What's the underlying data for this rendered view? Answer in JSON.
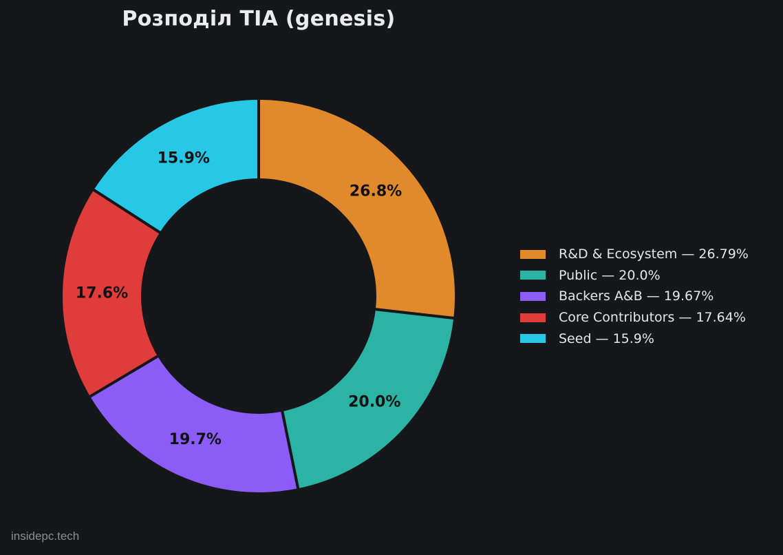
{
  "chart_data": {
    "type": "pie",
    "title": "Розподіл TIA (genesis)",
    "categories": [
      "R&D & Ecosystem",
      "Public",
      "Backers A&B",
      "Core Contributors",
      "Seed"
    ],
    "values": [
      26.79,
      20.0,
      19.67,
      17.64,
      15.9
    ],
    "slice_labels": [
      "26.8%",
      "20.0%",
      "19.7%",
      "17.6%",
      "15.9%"
    ],
    "legend_entries": [
      "R&D & Ecosystem — 26.79%",
      "Public — 20.0%",
      "Backers A&B — 19.67%",
      "Core Contributors — 17.64%",
      "Seed — 15.9%"
    ],
    "colors": [
      "#e08a2c",
      "#2bb3a3",
      "#8b5cf6",
      "#e03c3c",
      "#27c7e6"
    ],
    "legend_position": "right",
    "donut": true,
    "start": "top",
    "direction": "clockwise"
  },
  "background_color": "#16171b",
  "watermark": "insidepc.tech"
}
